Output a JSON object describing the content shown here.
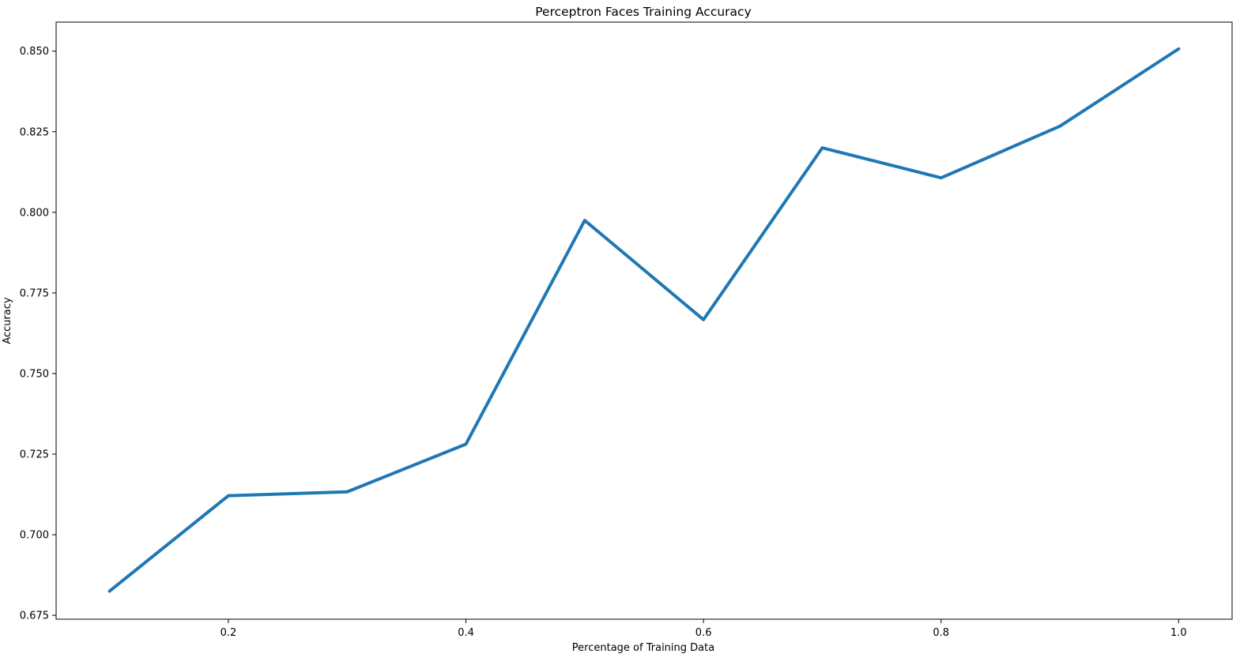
{
  "chart_data": {
    "type": "line",
    "title": "Perceptron Faces Training Accuracy",
    "xlabel": "Percentage of Training Data",
    "ylabel": "Accuracy",
    "xlim": [
      0.055,
      1.045
    ],
    "ylim": [
      0.6738,
      0.859
    ],
    "xticks": [
      0.2,
      0.4,
      0.6,
      0.8,
      1.0
    ],
    "xtick_labels": [
      "0.2",
      "0.4",
      "0.6",
      "0.8",
      "1.0"
    ],
    "yticks": [
      0.675,
      0.7,
      0.725,
      0.75,
      0.775,
      0.8,
      0.825,
      0.85
    ],
    "ytick_labels": [
      "0.675",
      "0.700",
      "0.725",
      "0.750",
      "0.775",
      "0.800",
      "0.825",
      "0.850"
    ],
    "grid": false,
    "series": [
      {
        "color": "#1f77b4",
        "x": [
          0.1,
          0.2,
          0.3,
          0.4,
          0.5,
          0.6,
          0.7,
          0.8,
          0.9,
          1.0
        ],
        "y": [
          0.6825,
          0.7121,
          0.7133,
          0.7281,
          0.7975,
          0.7667,
          0.82,
          0.8107,
          0.8267,
          0.8507
        ]
      }
    ]
  }
}
